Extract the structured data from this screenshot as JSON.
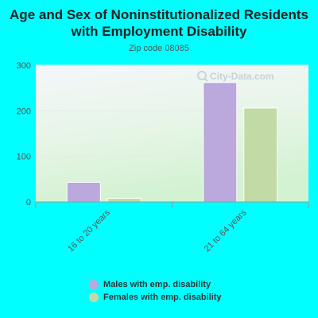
{
  "chart_data": {
    "type": "bar",
    "title": "Age and Sex of Noninstitutionalized Residents with Employment Disability",
    "subtitle": "Zip code 08085",
    "categories": [
      "16 to 20 years",
      "21 to 64 years"
    ],
    "series": [
      {
        "name": "Males with emp. disability",
        "values": [
          43,
          262
        ],
        "color": "#bba8dc"
      },
      {
        "name": "Females with emp. disability",
        "values": [
          8,
          206
        ],
        "color": "#c2dba6"
      }
    ],
    "ylim": [
      0,
      300
    ],
    "yticks": [
      "0",
      "100",
      "200",
      "300"
    ],
    "grid": true,
    "legend_position": "bottom",
    "watermark": "City-Data.com"
  }
}
